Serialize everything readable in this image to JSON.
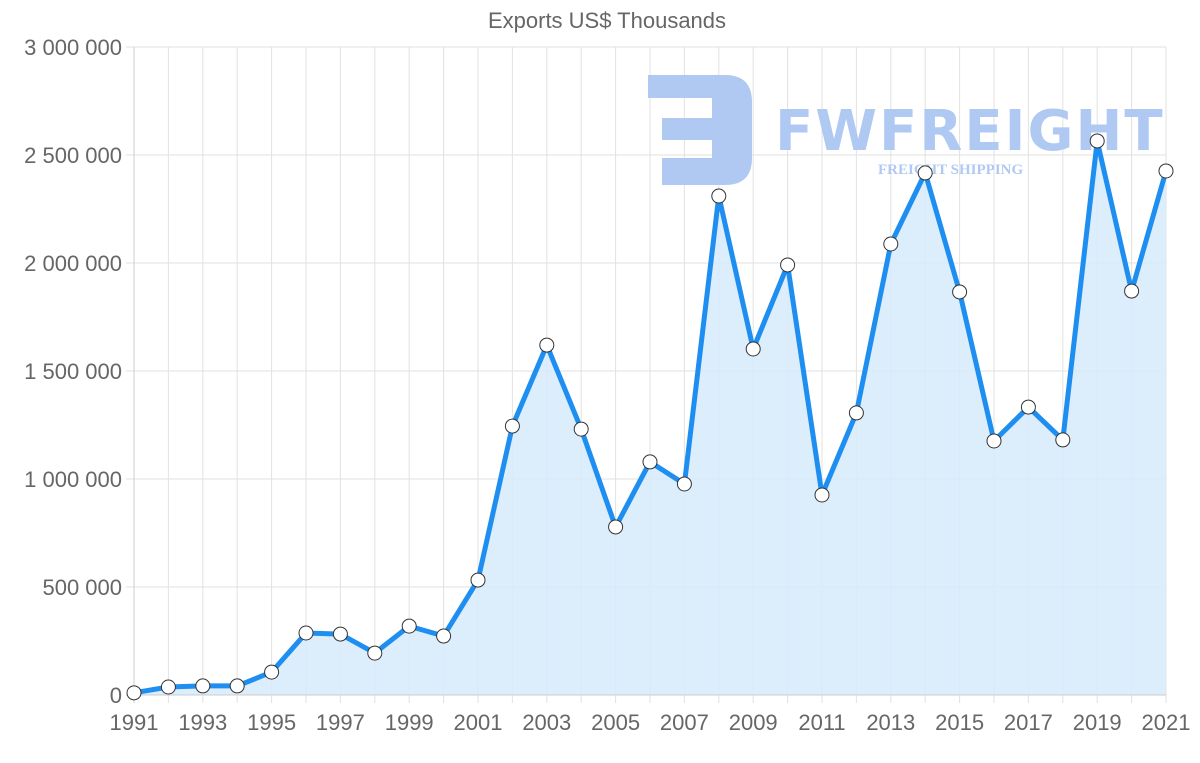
{
  "chart_data": {
    "type": "area",
    "title": "Exports US$ Thousands",
    "xlabel": "",
    "ylabel": "",
    "ylim": [
      0,
      3000000
    ],
    "grid": true,
    "legend": "none",
    "y_ticks": [
      "0",
      "500 000",
      "1 000 000",
      "1 500 000",
      "2 000 000",
      "2 500 000",
      "3 000 000"
    ],
    "x_tick_labels": [
      "1991",
      "1993",
      "1995",
      "1997",
      "1999",
      "2001",
      "2003",
      "2005",
      "2007",
      "2009",
      "2011",
      "2013",
      "2015",
      "2017",
      "2019",
      "2021"
    ],
    "x": [
      1991,
      1992,
      1993,
      1994,
      1995,
      1996,
      1997,
      1998,
      1999,
      2000,
      2001,
      2002,
      2003,
      2004,
      2005,
      2006,
      2007,
      2008,
      2009,
      2010,
      2011,
      2012,
      2013,
      2014,
      2015,
      2016,
      2017,
      2018,
      2019,
      2020,
      2021
    ],
    "series": [
      {
        "name": "Exports US$ Thousands",
        "values": [
          10000,
          37000,
          42000,
          42000,
          106000,
          287000,
          282000,
          194000,
          319000,
          273000,
          532000,
          1245000,
          1620000,
          1231000,
          778000,
          1079000,
          977000,
          2310000,
          1602000,
          1991000,
          926000,
          1306000,
          2088000,
          2417000,
          1866000,
          1176000,
          1333000,
          1181000,
          2565000,
          1870000,
          2426000
        ]
      }
    ],
    "colors": {
      "line": "#1e8ff0",
      "fill": "#d8ebfc",
      "grid": "#e2e2e2",
      "axis": "#cccccc",
      "text": "#666666"
    }
  },
  "watermark": {
    "brand": "FWFREIGHT",
    "tagline": "FREIGHT SHIPPING",
    "color": "#b0c9f2"
  }
}
